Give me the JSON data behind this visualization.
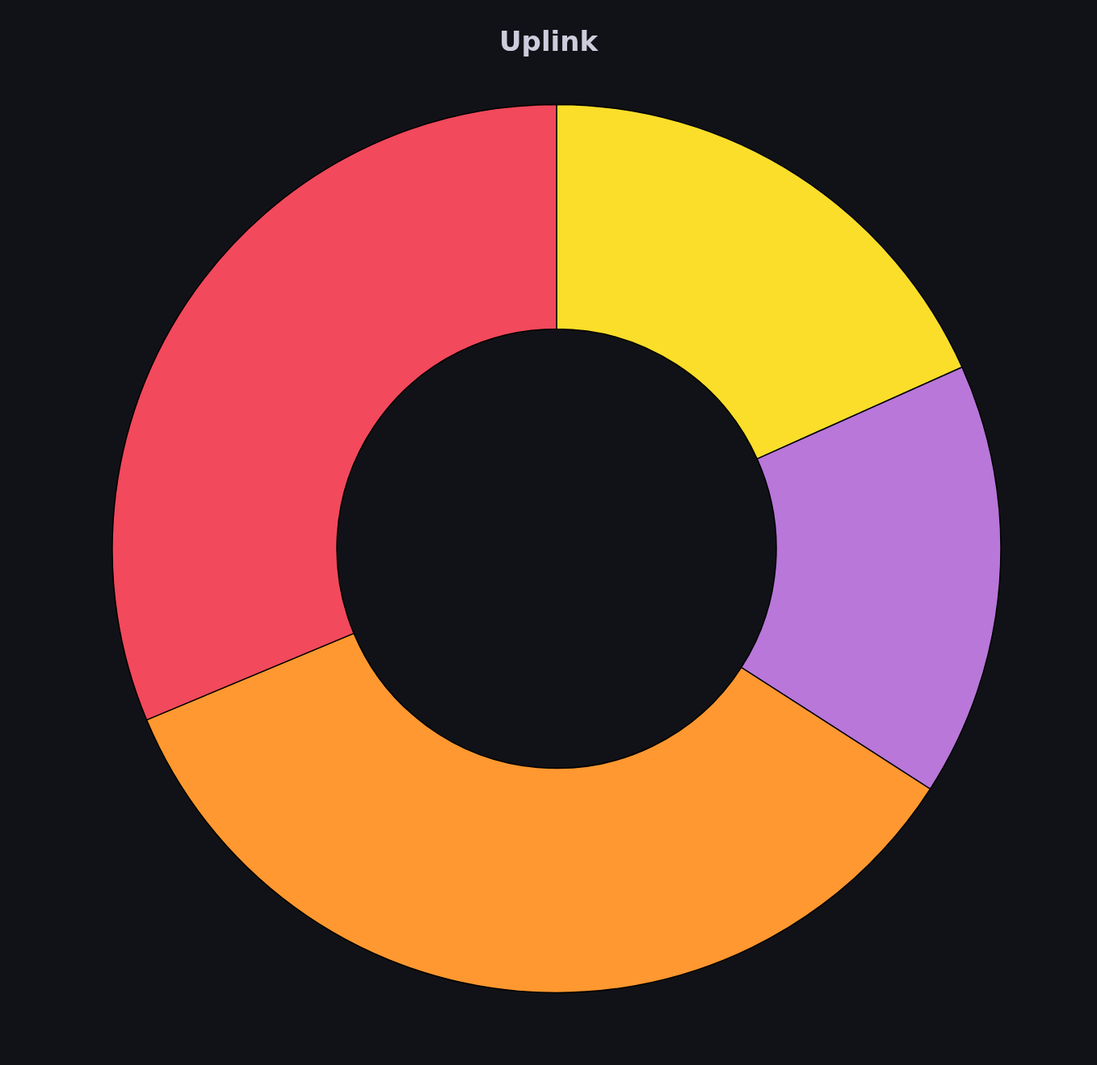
{
  "chart_data": {
    "type": "donut",
    "title": "Uplink",
    "categories": [
      null,
      null,
      null,
      null
    ],
    "values": [
      18.3,
      15.8,
      34.6,
      31.3
    ],
    "colors": [
      "#fade2a",
      "#b877d9",
      "#ff9830",
      "#f2495c"
    ]
  }
}
